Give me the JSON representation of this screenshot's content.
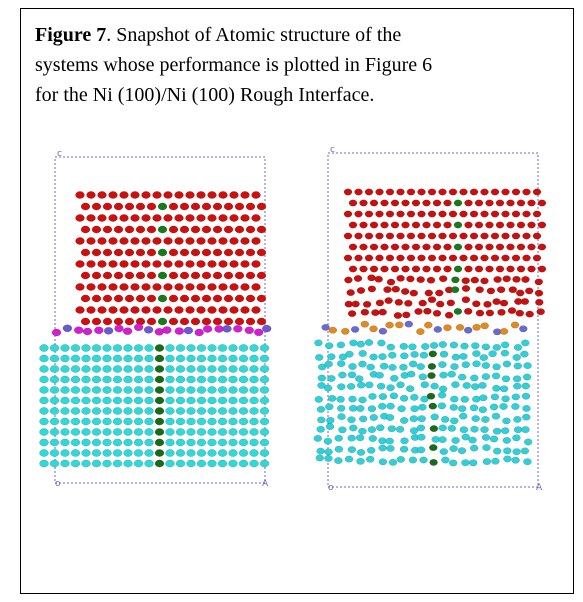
{
  "caption": {
    "label": "Figure 7",
    "lines": [
      ".  Snapshot of Atomic structure of the",
      "systems whose performance is plotted in Figure 6",
      "for the Ni (100)/Ni (100) Rough Interface."
    ]
  },
  "panels": [
    {
      "top": "c",
      "origin": "o",
      "corner": "A"
    },
    {
      "top": "c",
      "origin": "o",
      "corner": "A"
    }
  ]
}
